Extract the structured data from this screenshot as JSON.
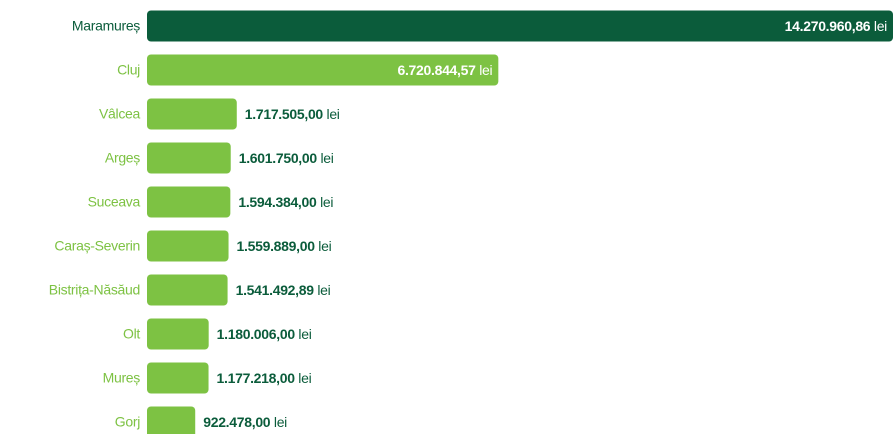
{
  "chart_data": {
    "type": "hbar",
    "categories": [
      "Maramureș",
      "Cluj",
      "Vâlcea",
      "Argeș",
      "Suceava",
      "Caraș-Severin",
      "Bistrița-Năsăud",
      "Olt",
      "Mureș",
      "Gorj"
    ],
    "values": [
      14270960.86,
      6720844.57,
      1717505.0,
      1601750.0,
      1594384.0,
      1559889.0,
      1541492.89,
      1180006.0,
      1177218.0,
      922478.0
    ],
    "value_labels": [
      "14.270.960,86",
      "6.720.844,57",
      "1.717.505,00",
      "1.601.750,00",
      "1.594.384,00",
      "1.559.889,00",
      "1.541.492,89",
      "1.180.006,00",
      "1.177.218,00",
      "922.478,00"
    ],
    "unit": "lei",
    "colors": [
      "#0b5c3b",
      "#7dc243",
      "#7dc243",
      "#7dc243",
      "#7dc243",
      "#7dc243",
      "#7dc243",
      "#7dc243",
      "#7dc243",
      "#7dc243"
    ]
  }
}
